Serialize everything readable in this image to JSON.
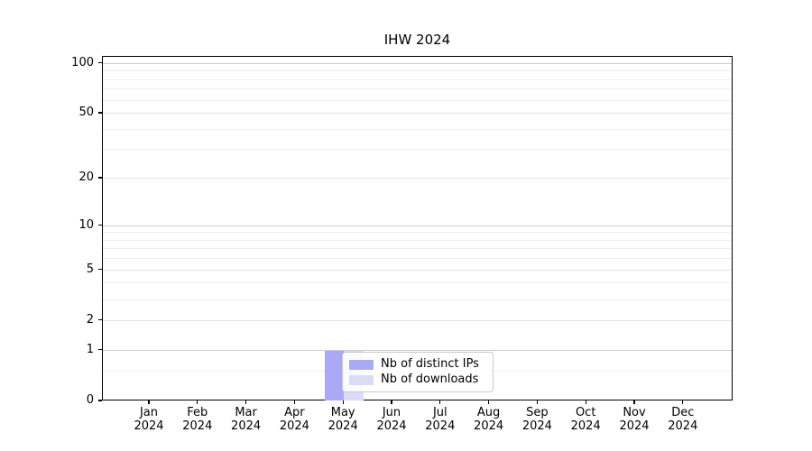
{
  "title": "IHW 2024",
  "colors": {
    "bar_distinct_ips": "#a9a9f6",
    "bar_downloads": "#dbdbf8",
    "grid_decade": "#cccccc",
    "grid_labeled": "#e4e4e4",
    "grid_minor": "#efefef",
    "axis_line": "#000000",
    "legend_border": "#c9c9c9",
    "legend_background": "#ffffff"
  },
  "chart_data": {
    "type": "bar",
    "title": "IHW 2024",
    "x_categories": [
      "Jan 2024",
      "Feb 2024",
      "Mar 2024",
      "Apr 2024",
      "May 2024",
      "Jun 2024",
      "Jul 2024",
      "Aug 2024",
      "Sep 2024",
      "Oct 2024",
      "Nov 2024",
      "Dec 2024"
    ],
    "series": [
      {
        "name": "Nb of distinct IPs",
        "color": "#a9a9f6",
        "values": [
          0,
          0,
          0,
          0,
          1,
          0,
          0,
          0,
          0,
          0,
          0,
          0
        ]
      },
      {
        "name": "Nb of downloads",
        "color": "#dbdbf8",
        "values": [
          0,
          0,
          0,
          0,
          1,
          0,
          0,
          0,
          0,
          0,
          0,
          0
        ]
      }
    ],
    "xlabel": "",
    "ylabel": "",
    "yscale": "log10(1+y)",
    "ylim": [
      0,
      110
    ],
    "y_tick_values": [
      0,
      1,
      2,
      5,
      10,
      20,
      50,
      100
    ],
    "y_tick_labels": [
      "0",
      "1",
      "2",
      "5",
      "10",
      "20",
      "50",
      "100"
    ],
    "y_decade_gridline_values": [
      1,
      10,
      100
    ],
    "y_labeled_gridline_values": [
      2,
      5,
      20,
      50
    ],
    "y_minor_gridline_values": [
      0.5,
      3,
      4,
      6,
      7,
      8,
      9,
      30,
      40,
      60,
      70,
      80,
      90
    ],
    "grid": "horizontal",
    "legend_position": "inside lower center-left"
  }
}
